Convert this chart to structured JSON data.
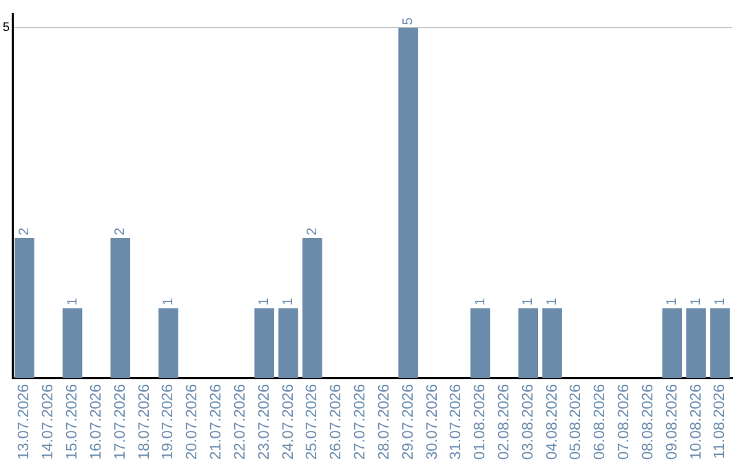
{
  "chart_data": {
    "type": "bar",
    "categories": [
      "13.07.2026",
      "14.07.2026",
      "15.07.2026",
      "16.07.2026",
      "17.07.2026",
      "18.07.2026",
      "19.07.2026",
      "20.07.2026",
      "21.07.2026",
      "22.07.2026",
      "23.07.2026",
      "24.07.2026",
      "25.07.2026",
      "26.07.2026",
      "27.07.2026",
      "28.07.2026",
      "29.07.2026",
      "30.07.2026",
      "31.07.2026",
      "01.08.2026",
      "02.08.2026",
      "03.08.2026",
      "04.08.2026",
      "05.08.2026",
      "06.08.2026",
      "07.08.2026",
      "08.08.2026",
      "09.08.2026",
      "10.08.2026",
      "11.08.2026"
    ],
    "values": [
      2,
      null,
      1,
      null,
      2,
      null,
      1,
      null,
      null,
      null,
      1,
      1,
      2,
      null,
      null,
      null,
      5,
      null,
      null,
      1,
      null,
      1,
      1,
      null,
      null,
      null,
      null,
      1,
      1,
      1
    ],
    "color": "#6a8caa",
    "ylim": [
      0,
      5.2
    ],
    "yticks": [
      {
        "value": 0,
        "label": null
      },
      5
    ],
    "grid": "y",
    "data_labels": true
  }
}
